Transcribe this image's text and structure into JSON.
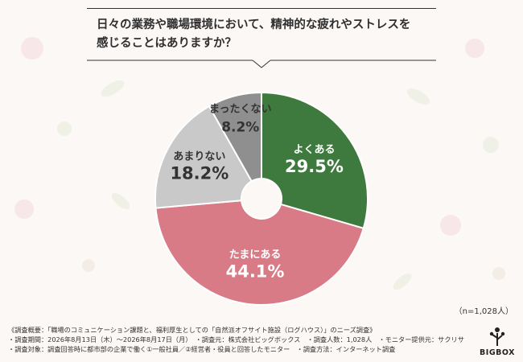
{
  "title": "日々の業務や職場環境において、精神的な疲れやストレスを\n感じることはありますか？",
  "sample_note": "（n=1,028人）",
  "footer": {
    "line1": "《調査概要：「職場のコミュニケーション課題と、福利厚生としての「自然派オフサイト施設（ログハウス）」のニーズ調査》",
    "line2": "・調査期間：2026年8月13日（木）～2026年8月17日（月）　・調査元：株式会社ビッグボックス　・調査人数：1,028人　・モニター提供元：サクリサ",
    "line3": "・調査対象：調査回答時に都市部の企業で働く①一般社員／②経営者・役員と回答したモニター　・調査方法：インターネット調査"
  },
  "logo": {
    "text": "BIGBOX"
  },
  "chart_data": {
    "type": "pie",
    "donut": true,
    "start": "top, clockwise",
    "slices": [
      {
        "label": "よくある",
        "value": 29.5,
        "display": "29.5%",
        "color": "#3e7a3e",
        "text_color": "#ffffff"
      },
      {
        "label": "たまにある",
        "value": 44.1,
        "display": "44.1%",
        "color": "#d97b86",
        "text_color": "#ffffff"
      },
      {
        "label": "あまりない",
        "value": 18.2,
        "display": "18.2%",
        "color": "#c9c9c9",
        "text_color": "#333333"
      },
      {
        "label": "まったくない",
        "value": 8.2,
        "display": "8.2%",
        "color": "#8f8f8f",
        "text_color": "#333333"
      }
    ]
  }
}
